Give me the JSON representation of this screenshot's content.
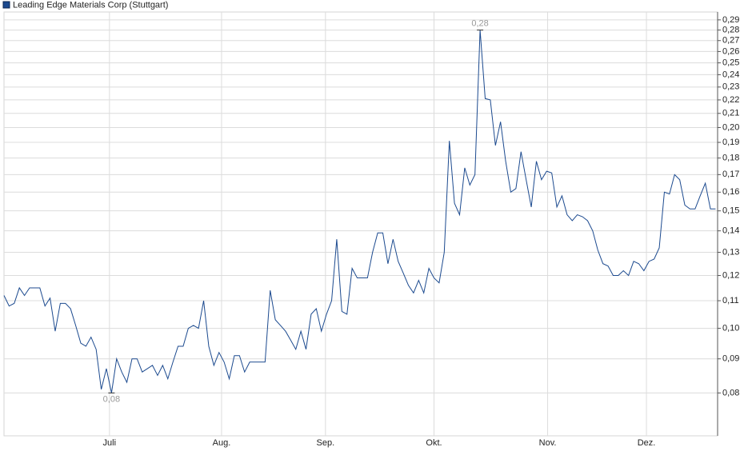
{
  "chart_data": {
    "type": "line",
    "title": "Leading Edge Materials Corp (Stuttgart)",
    "log_scale": true,
    "grid": true,
    "color": "#1c4a8f",
    "x": [
      0,
      1,
      2,
      3,
      4,
      5,
      6,
      7,
      8,
      9,
      10,
      11,
      12,
      13,
      14,
      15,
      16,
      17,
      18,
      19,
      20,
      21,
      22,
      23,
      24,
      25,
      26,
      27,
      28,
      29,
      30,
      31,
      32,
      33,
      34,
      35,
      36,
      37,
      38,
      39,
      40,
      41,
      42,
      43,
      44,
      45,
      46,
      47,
      48,
      49,
      50,
      51,
      52,
      53,
      54,
      55,
      56,
      57,
      58,
      59,
      60,
      61,
      62,
      63,
      64,
      65,
      66,
      67,
      68,
      69,
      70,
      71,
      72,
      73,
      74,
      75,
      76,
      77,
      78,
      79,
      80,
      81,
      82,
      83,
      84,
      85,
      86,
      87,
      88,
      89,
      90,
      91,
      92,
      93,
      94,
      95,
      96,
      97,
      98,
      99,
      100,
      101,
      102,
      103,
      104,
      105,
      106,
      107,
      108,
      109,
      110,
      111,
      112,
      113,
      114,
      115,
      116,
      117,
      118,
      119,
      120,
      121,
      122,
      123,
      124,
      125,
      126,
      127,
      128,
      129,
      130,
      131,
      132,
      133,
      134,
      135,
      136,
      137,
      138,
      139
    ],
    "values": [
      0.112,
      0.108,
      0.109,
      0.115,
      0.112,
      0.115,
      0.115,
      0.115,
      0.108,
      0.111,
      0.099,
      0.109,
      0.109,
      0.107,
      0.101,
      0.095,
      0.094,
      0.097,
      0.093,
      0.081,
      0.087,
      0.08,
      0.09,
      0.086,
      0.083,
      0.09,
      0.09,
      0.086,
      0.087,
      0.088,
      0.085,
      0.088,
      0.084,
      0.089,
      0.094,
      0.094,
      0.1,
      0.101,
      0.1,
      0.11,
      0.094,
      0.088,
      0.092,
      0.089,
      0.084,
      0.091,
      0.091,
      0.086,
      0.089,
      0.089,
      0.089,
      0.089,
      0.114,
      0.103,
      0.101,
      0.099,
      0.096,
      0.093,
      0.099,
      0.093,
      0.105,
      0.107,
      0.099,
      0.105,
      0.11,
      0.136,
      0.106,
      0.105,
      0.123,
      0.119,
      0.119,
      0.119,
      0.13,
      0.139,
      0.139,
      0.125,
      0.136,
      0.126,
      0.121,
      0.116,
      0.113,
      0.118,
      0.113,
      0.123,
      0.119,
      0.117,
      0.13,
      0.191,
      0.154,
      0.148,
      0.174,
      0.164,
      0.17,
      0.28,
      0.221,
      0.22,
      0.188,
      0.204,
      0.178,
      0.16,
      0.162,
      0.184,
      0.167,
      0.152,
      0.178,
      0.167,
      0.172,
      0.171,
      0.152,
      0.158,
      0.148,
      0.145,
      0.148,
      0.147,
      0.145,
      0.14,
      0.131,
      0.125,
      0.124,
      0.12,
      0.12,
      0.122,
      0.12,
      0.126,
      0.125,
      0.122,
      0.126,
      0.127,
      0.132,
      0.16,
      0.159,
      0.17,
      0.167,
      0.153,
      0.151,
      0.151,
      0.158,
      0.165,
      0.151,
      0.151
    ],
    "annotations": [
      {
        "label": "0,28",
        "x": 93,
        "value": 0.28
      },
      {
        "label": "0,08",
        "x": 21,
        "value": 0.08
      }
    ],
    "xlim": [
      0,
      139.4
    ],
    "xticks": [
      {
        "value": 20.6,
        "label": "Juli"
      },
      {
        "value": 42.5,
        "label": "Aug."
      },
      {
        "value": 62.8,
        "label": "Sep."
      },
      {
        "value": 84,
        "label": "Okt."
      },
      {
        "value": 106.2,
        "label": "Nov."
      },
      {
        "value": 125.5,
        "label": "Dez."
      }
    ],
    "ylim": [
      0.069,
      0.298
    ],
    "yticks": [
      {
        "value": 0.08,
        "label": "0,08"
      },
      {
        "value": 0.09,
        "label": "0,09"
      },
      {
        "value": 0.1,
        "label": "0,10"
      },
      {
        "value": 0.11,
        "label": "0,11"
      },
      {
        "value": 0.12,
        "label": "0,12"
      },
      {
        "value": 0.13,
        "label": "0,13"
      },
      {
        "value": 0.14,
        "label": "0,14"
      },
      {
        "value": 0.15,
        "label": "0,15"
      },
      {
        "value": 0.16,
        "label": "0,16"
      },
      {
        "value": 0.17,
        "label": "0,17"
      },
      {
        "value": 0.18,
        "label": "0,18"
      },
      {
        "value": 0.19,
        "label": "0,19"
      },
      {
        "value": 0.2,
        "label": "0,20"
      },
      {
        "value": 0.21,
        "label": "0,21"
      },
      {
        "value": 0.22,
        "label": "0,22"
      },
      {
        "value": 0.23,
        "label": "0,23"
      },
      {
        "value": 0.24,
        "label": "0,24"
      },
      {
        "value": 0.25,
        "label": "0,25"
      },
      {
        "value": 0.26,
        "label": "0,26"
      },
      {
        "value": 0.27,
        "label": "0,27"
      },
      {
        "value": 0.28,
        "label": "0,28"
      },
      {
        "value": 0.29,
        "label": "0,29"
      }
    ]
  }
}
